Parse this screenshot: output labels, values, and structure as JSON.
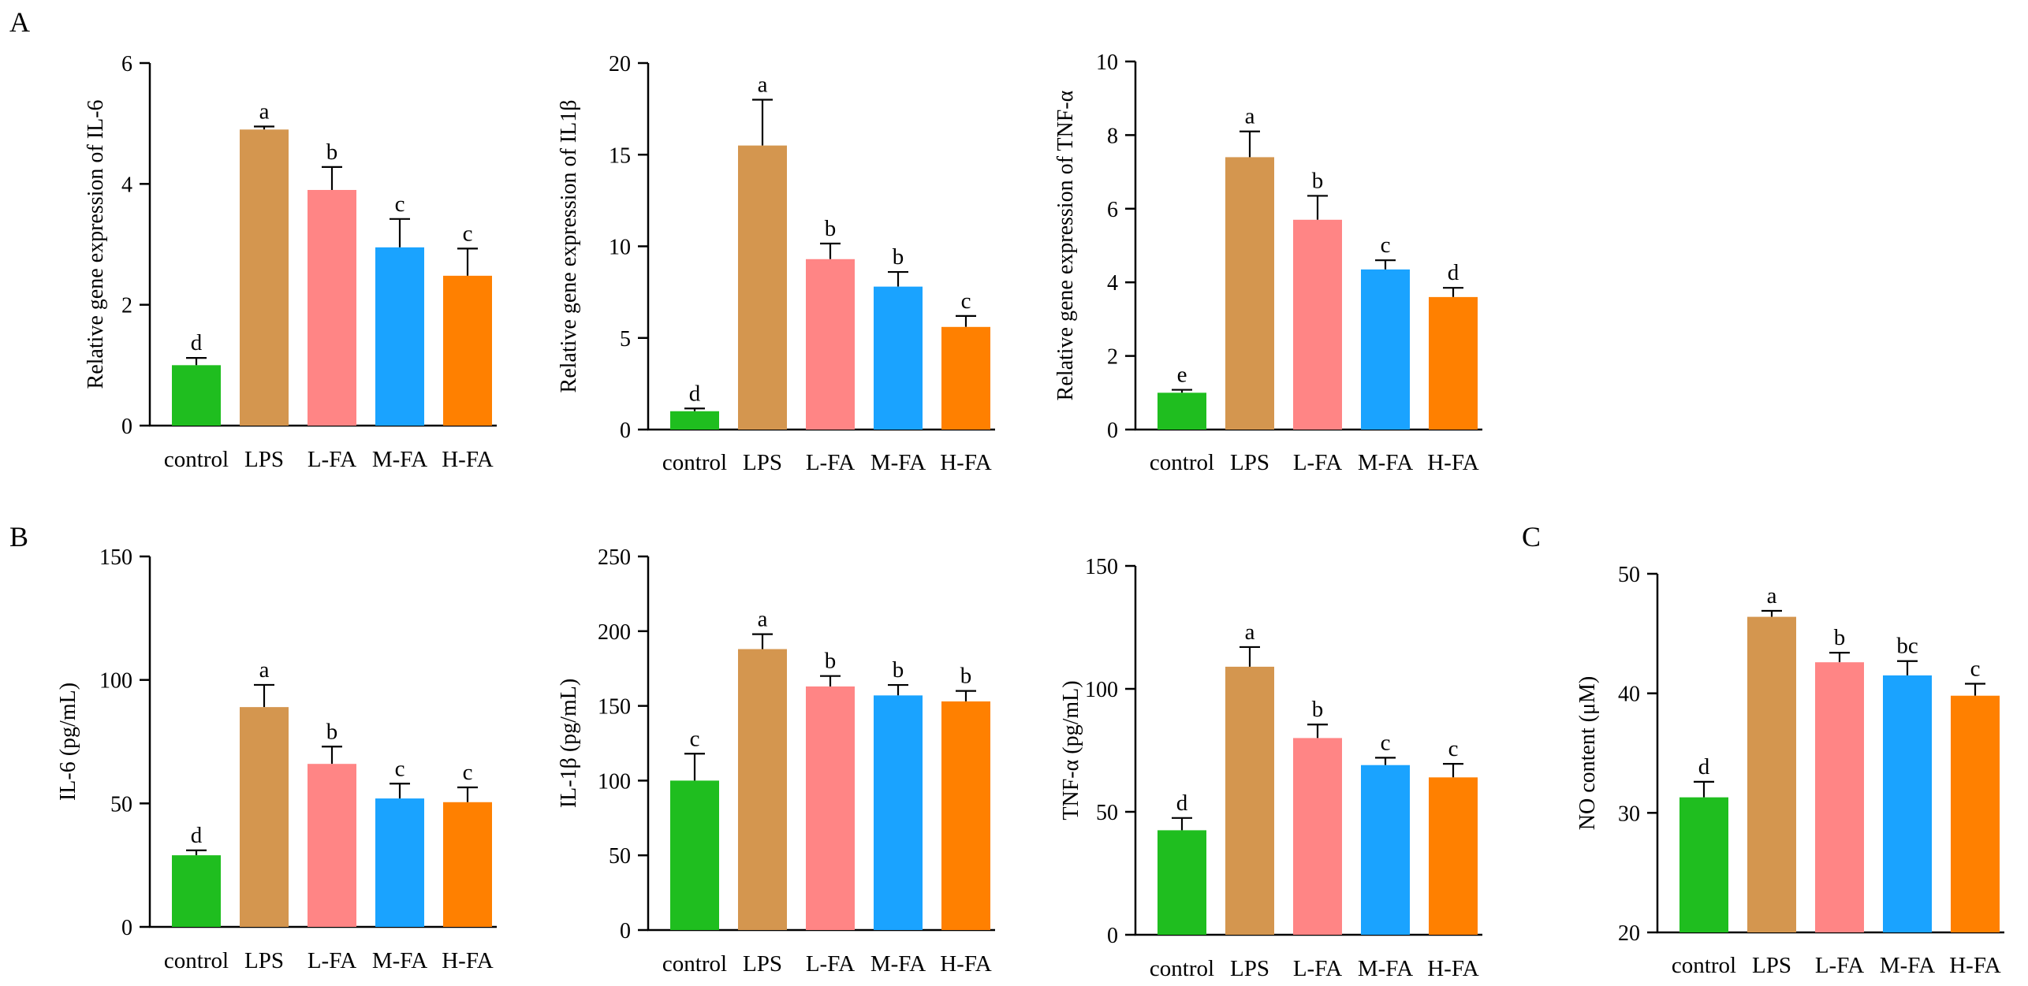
{
  "figure_title": "",
  "panels": [
    {
      "label": "A"
    },
    {
      "label": "B"
    },
    {
      "label": "C"
    }
  ],
  "colors": {
    "control": "#1fbe1f",
    "LPS": "#d4964f",
    "L-FA": "#ff8585",
    "M-FA": "#1aa3ff",
    "H-FA": "#ff8000"
  },
  "chart_data": [
    {
      "type": "bar",
      "panel": "A",
      "title": "",
      "categories": [
        "control",
        "LPS",
        "L-FA",
        "M-FA",
        "H-FA"
      ],
      "values": [
        1.0,
        4.9,
        3.9,
        2.95,
        2.48
      ],
      "errors": [
        0.12,
        0.05,
        0.38,
        0.47,
        0.45
      ],
      "significance": [
        "d",
        "a",
        "b",
        "c",
        "c"
      ],
      "xlabel": "",
      "ylabel": "Relative gene expression of  IL-6",
      "ylim": [
        0,
        6
      ],
      "yticks": [
        0,
        2,
        4,
        6
      ],
      "ytick_labels": [
        "0",
        "2",
        "4",
        "6"
      ]
    },
    {
      "type": "bar",
      "panel": "A",
      "title": "",
      "categories": [
        "control",
        "LPS",
        "L-FA",
        "M-FA",
        "H-FA"
      ],
      "values": [
        1.0,
        15.5,
        9.3,
        7.8,
        5.6
      ],
      "errors": [
        0.15,
        2.5,
        0.85,
        0.8,
        0.6
      ],
      "significance": [
        "d",
        "a",
        "b",
        "b",
        "c"
      ],
      "xlabel": "",
      "ylabel": "Relative gene expression of  IL1β",
      "ylim": [
        0,
        20
      ],
      "yticks": [
        0,
        5,
        10,
        15,
        20
      ],
      "ytick_labels": [
        "0",
        "5",
        "10",
        "15",
        "20"
      ]
    },
    {
      "type": "bar",
      "panel": "A",
      "title": "",
      "categories": [
        "control",
        "LPS",
        "L-FA",
        "M-FA",
        "H-FA"
      ],
      "values": [
        1.0,
        7.4,
        5.7,
        4.35,
        3.6
      ],
      "errors": [
        0.08,
        0.7,
        0.65,
        0.25,
        0.25
      ],
      "significance": [
        "e",
        "a",
        "b",
        "c",
        "d"
      ],
      "xlabel": "",
      "ylabel": "Relative gene expression of  TNF-α",
      "ylim": [
        0,
        10
      ],
      "yticks": [
        0,
        2,
        4,
        6,
        8,
        10
      ],
      "ytick_labels": [
        "0",
        "2",
        "4",
        "6",
        "8",
        "10"
      ]
    },
    {
      "type": "bar",
      "panel": "B",
      "title": "",
      "categories": [
        "control",
        "LPS",
        "L-FA",
        "M-FA",
        "H-FA"
      ],
      "values": [
        29,
        89,
        66,
        52,
        50.5
      ],
      "errors": [
        2,
        9,
        7,
        6,
        6
      ],
      "significance": [
        "d",
        "a",
        "b",
        "c",
        "c"
      ],
      "xlabel": "",
      "ylabel": "IL-6 (pg/mL)",
      "ylim": [
        0,
        150
      ],
      "yticks": [
        0,
        50,
        100,
        150
      ],
      "ytick_labels": [
        "0",
        "50",
        "100",
        "150"
      ]
    },
    {
      "type": "bar",
      "panel": "B",
      "title": "",
      "categories": [
        "control",
        "LPS",
        "L-FA",
        "M-FA",
        "H-FA"
      ],
      "values": [
        100,
        188,
        163,
        157,
        153
      ],
      "errors": [
        18,
        10,
        7,
        7,
        7
      ],
      "significance": [
        "c",
        "a",
        "b",
        "b",
        "b"
      ],
      "xlabel": "",
      "ylabel": "IL-1β (pg/mL)",
      "ylim": [
        0,
        250
      ],
      "yticks": [
        0,
        50,
        100,
        150,
        200,
        250
      ],
      "ytick_labels": [
        "0",
        "50",
        "100",
        "150",
        "200",
        "250"
      ]
    },
    {
      "type": "bar",
      "panel": "B",
      "title": "",
      "categories": [
        "control",
        "LPS",
        "L-FA",
        "M-FA",
        "H-FA"
      ],
      "values": [
        42.5,
        109,
        80,
        69,
        64
      ],
      "errors": [
        5,
        8,
        5.5,
        3,
        5.5
      ],
      "significance": [
        "d",
        "a",
        "b",
        "c",
        "c"
      ],
      "xlabel": "",
      "ylabel": "TNF-α (pg/mL)",
      "ylim": [
        0,
        150
      ],
      "yticks": [
        0,
        50,
        100,
        150
      ],
      "ytick_labels": [
        "0",
        "50",
        "100",
        "150"
      ]
    },
    {
      "type": "bar",
      "panel": "C",
      "title": "",
      "categories": [
        "control",
        "LPS",
        "L-FA",
        "M-FA",
        "H-FA"
      ],
      "values": [
        31.3,
        46.4,
        42.6,
        41.5,
        39.8
      ],
      "errors": [
        1.3,
        0.5,
        0.8,
        1.2,
        1.0
      ],
      "significance": [
        "d",
        "a",
        "b",
        "bc",
        "c"
      ],
      "xlabel": "",
      "ylabel": "NO content (μM)",
      "ylim": [
        20,
        50
      ],
      "yticks": [
        20,
        30,
        40,
        50
      ],
      "ytick_labels": [
        "20",
        "30",
        "40",
        "50"
      ]
    }
  ]
}
